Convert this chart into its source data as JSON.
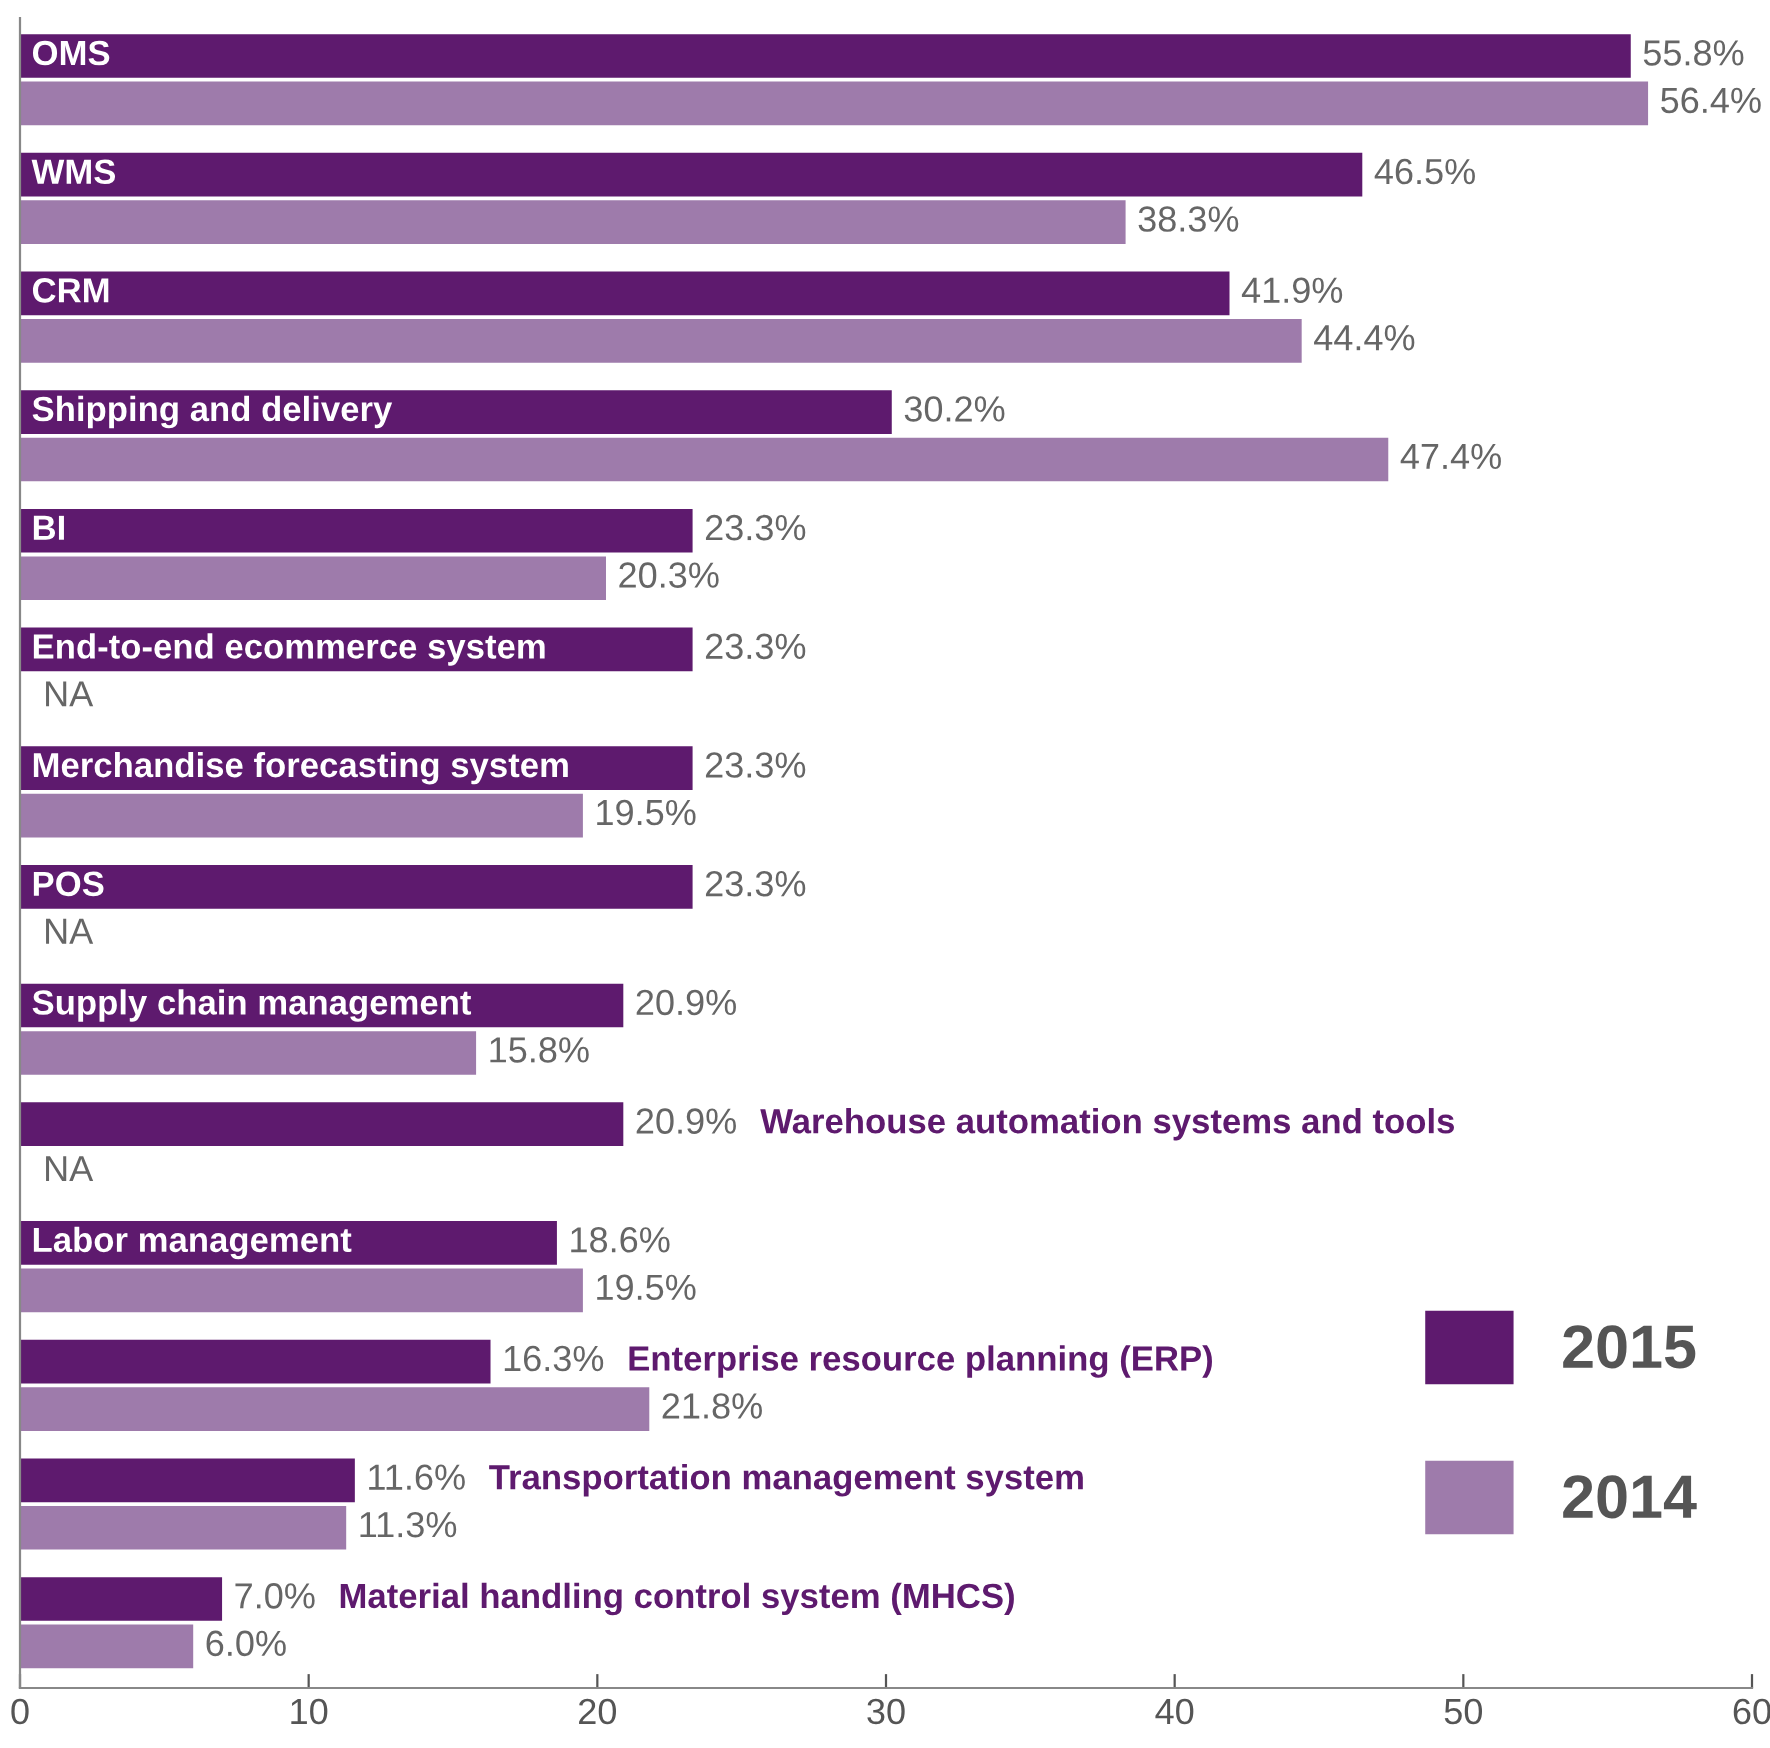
{
  "chart_data": {
    "type": "bar",
    "orientation": "horizontal",
    "categories": [
      "OMS",
      "WMS",
      "CRM",
      "Shipping and delivery",
      "BI",
      "End-to-end ecommerce system",
      "Merchandise forecasting system",
      "POS",
      "Supply chain management",
      "Warehouse automation systems and tools",
      "Labor management",
      "Enterprise resource planning (ERP)",
      "Transportation management system",
      "Material handling control system (MHCS)"
    ],
    "series": [
      {
        "name": "2015",
        "color": "#5e1a6e",
        "values": [
          55.8,
          46.5,
          41.9,
          30.2,
          23.3,
          23.3,
          23.3,
          23.3,
          20.9,
          20.9,
          18.6,
          16.3,
          11.6,
          7.0
        ],
        "value_labels": [
          "55.8%",
          "46.5%",
          "41.9%",
          "30.2%",
          "23.3%",
          "23.3%",
          "23.3%",
          "23.3%",
          "20.9%",
          "20.9%",
          "18.6%",
          "16.3%",
          "11.6%",
          "7.0%"
        ]
      },
      {
        "name": "2014",
        "color": "#9e7bab",
        "values": [
          56.4,
          38.3,
          44.4,
          47.4,
          20.3,
          null,
          19.5,
          null,
          15.8,
          null,
          19.5,
          21.8,
          11.3,
          6.0
        ],
        "value_labels": [
          "56.4%",
          "38.3%",
          "44.4%",
          "47.4%",
          "20.3%",
          "NA",
          "19.5%",
          "NA",
          "15.8%",
          "NA",
          "19.5%",
          "21.8%",
          "11.3%",
          "6.0%"
        ]
      }
    ],
    "xlim": [
      0,
      60
    ],
    "xticks": [
      0,
      10,
      20,
      30,
      40,
      50,
      60
    ],
    "tick_labels": "x",
    "grid": false,
    "legend": "bottom right"
  }
}
